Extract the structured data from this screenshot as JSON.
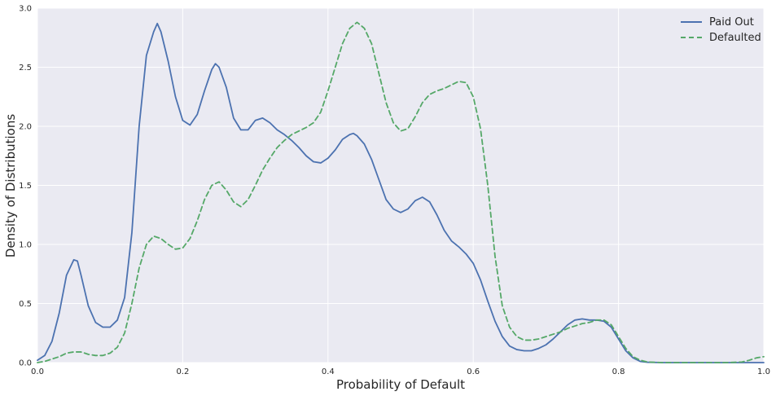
{
  "chart_data": {
    "type": "line",
    "title": "",
    "xlabel": "Probability of Default",
    "ylabel": "Density of Distributions",
    "xlim": [
      0,
      1
    ],
    "ylim": [
      0,
      3
    ],
    "xticks": [
      "0.0",
      "0.2",
      "0.4",
      "0.6",
      "0.8",
      "1.0"
    ],
    "yticks": [
      "0.0",
      "0.5",
      "1.0",
      "1.5",
      "2.0",
      "2.5",
      "3.0"
    ],
    "grid": true,
    "legend_position": "top-right",
    "series": [
      {
        "name": "Paid Out",
        "color": "#4c72b0",
        "style": "solid",
        "points": [
          [
            0.0,
            0.02
          ],
          [
            0.01,
            0.06
          ],
          [
            0.02,
            0.18
          ],
          [
            0.03,
            0.42
          ],
          [
            0.04,
            0.74
          ],
          [
            0.05,
            0.87
          ],
          [
            0.055,
            0.86
          ],
          [
            0.06,
            0.74
          ],
          [
            0.07,
            0.48
          ],
          [
            0.08,
            0.34
          ],
          [
            0.09,
            0.3
          ],
          [
            0.1,
            0.3
          ],
          [
            0.11,
            0.36
          ],
          [
            0.12,
            0.55
          ],
          [
            0.13,
            1.1
          ],
          [
            0.14,
            2.0
          ],
          [
            0.15,
            2.6
          ],
          [
            0.16,
            2.8
          ],
          [
            0.165,
            2.87
          ],
          [
            0.17,
            2.8
          ],
          [
            0.18,
            2.55
          ],
          [
            0.19,
            2.25
          ],
          [
            0.2,
            2.05
          ],
          [
            0.21,
            2.01
          ],
          [
            0.22,
            2.1
          ],
          [
            0.23,
            2.3
          ],
          [
            0.24,
            2.48
          ],
          [
            0.245,
            2.53
          ],
          [
            0.25,
            2.5
          ],
          [
            0.26,
            2.33
          ],
          [
            0.27,
            2.07
          ],
          [
            0.28,
            1.97
          ],
          [
            0.29,
            1.97
          ],
          [
            0.3,
            2.05
          ],
          [
            0.31,
            2.07
          ],
          [
            0.32,
            2.03
          ],
          [
            0.33,
            1.97
          ],
          [
            0.34,
            1.93
          ],
          [
            0.35,
            1.88
          ],
          [
            0.36,
            1.82
          ],
          [
            0.37,
            1.75
          ],
          [
            0.38,
            1.7
          ],
          [
            0.39,
            1.69
          ],
          [
            0.4,
            1.73
          ],
          [
            0.41,
            1.8
          ],
          [
            0.42,
            1.89
          ],
          [
            0.43,
            1.93
          ],
          [
            0.435,
            1.94
          ],
          [
            0.44,
            1.92
          ],
          [
            0.45,
            1.85
          ],
          [
            0.46,
            1.72
          ],
          [
            0.47,
            1.55
          ],
          [
            0.48,
            1.38
          ],
          [
            0.49,
            1.3
          ],
          [
            0.5,
            1.27
          ],
          [
            0.51,
            1.3
          ],
          [
            0.52,
            1.37
          ],
          [
            0.53,
            1.4
          ],
          [
            0.54,
            1.36
          ],
          [
            0.55,
            1.25
          ],
          [
            0.56,
            1.12
          ],
          [
            0.57,
            1.03
          ],
          [
            0.58,
            0.98
          ],
          [
            0.59,
            0.92
          ],
          [
            0.6,
            0.84
          ],
          [
            0.61,
            0.7
          ],
          [
            0.62,
            0.52
          ],
          [
            0.63,
            0.35
          ],
          [
            0.64,
            0.22
          ],
          [
            0.65,
            0.14
          ],
          [
            0.66,
            0.11
          ],
          [
            0.67,
            0.1
          ],
          [
            0.68,
            0.1
          ],
          [
            0.69,
            0.12
          ],
          [
            0.7,
            0.15
          ],
          [
            0.71,
            0.2
          ],
          [
            0.72,
            0.26
          ],
          [
            0.73,
            0.32
          ],
          [
            0.74,
            0.36
          ],
          [
            0.75,
            0.37
          ],
          [
            0.76,
            0.36
          ],
          [
            0.77,
            0.36
          ],
          [
            0.78,
            0.35
          ],
          [
            0.79,
            0.3
          ],
          [
            0.8,
            0.2
          ],
          [
            0.81,
            0.1
          ],
          [
            0.82,
            0.04
          ],
          [
            0.83,
            0.01
          ],
          [
            0.84,
            0.003
          ],
          [
            0.86,
            0.0
          ],
          [
            0.9,
            0.0
          ],
          [
            0.95,
            0.0
          ],
          [
            1.0,
            0.0
          ]
        ]
      },
      {
        "name": "Defaulted",
        "color": "#55a868",
        "style": "dashed",
        "points": [
          [
            0.0,
            0.0
          ],
          [
            0.01,
            0.01
          ],
          [
            0.02,
            0.03
          ],
          [
            0.03,
            0.05
          ],
          [
            0.04,
            0.08
          ],
          [
            0.05,
            0.09
          ],
          [
            0.06,
            0.09
          ],
          [
            0.07,
            0.07
          ],
          [
            0.08,
            0.06
          ],
          [
            0.09,
            0.06
          ],
          [
            0.1,
            0.08
          ],
          [
            0.11,
            0.13
          ],
          [
            0.12,
            0.25
          ],
          [
            0.13,
            0.5
          ],
          [
            0.14,
            0.8
          ],
          [
            0.15,
            1.0
          ],
          [
            0.16,
            1.07
          ],
          [
            0.17,
            1.05
          ],
          [
            0.18,
            1.0
          ],
          [
            0.19,
            0.96
          ],
          [
            0.2,
            0.97
          ],
          [
            0.21,
            1.05
          ],
          [
            0.22,
            1.2
          ],
          [
            0.23,
            1.38
          ],
          [
            0.24,
            1.5
          ],
          [
            0.25,
            1.53
          ],
          [
            0.26,
            1.46
          ],
          [
            0.27,
            1.36
          ],
          [
            0.28,
            1.32
          ],
          [
            0.29,
            1.38
          ],
          [
            0.3,
            1.5
          ],
          [
            0.31,
            1.63
          ],
          [
            0.32,
            1.73
          ],
          [
            0.33,
            1.82
          ],
          [
            0.34,
            1.88
          ],
          [
            0.35,
            1.93
          ],
          [
            0.36,
            1.96
          ],
          [
            0.37,
            1.99
          ],
          [
            0.38,
            2.03
          ],
          [
            0.39,
            2.12
          ],
          [
            0.4,
            2.3
          ],
          [
            0.41,
            2.5
          ],
          [
            0.42,
            2.7
          ],
          [
            0.43,
            2.83
          ],
          [
            0.44,
            2.88
          ],
          [
            0.45,
            2.83
          ],
          [
            0.46,
            2.7
          ],
          [
            0.47,
            2.45
          ],
          [
            0.48,
            2.2
          ],
          [
            0.49,
            2.03
          ],
          [
            0.5,
            1.96
          ],
          [
            0.51,
            1.98
          ],
          [
            0.52,
            2.08
          ],
          [
            0.53,
            2.2
          ],
          [
            0.54,
            2.27
          ],
          [
            0.55,
            2.3
          ],
          [
            0.56,
            2.32
          ],
          [
            0.57,
            2.35
          ],
          [
            0.58,
            2.38
          ],
          [
            0.59,
            2.37
          ],
          [
            0.6,
            2.25
          ],
          [
            0.61,
            1.98
          ],
          [
            0.62,
            1.5
          ],
          [
            0.63,
            0.9
          ],
          [
            0.64,
            0.48
          ],
          [
            0.65,
            0.3
          ],
          [
            0.66,
            0.22
          ],
          [
            0.67,
            0.19
          ],
          [
            0.68,
            0.19
          ],
          [
            0.69,
            0.2
          ],
          [
            0.7,
            0.22
          ],
          [
            0.71,
            0.24
          ],
          [
            0.72,
            0.26
          ],
          [
            0.73,
            0.29
          ],
          [
            0.74,
            0.31
          ],
          [
            0.75,
            0.33
          ],
          [
            0.76,
            0.34
          ],
          [
            0.77,
            0.36
          ],
          [
            0.78,
            0.36
          ],
          [
            0.79,
            0.32
          ],
          [
            0.8,
            0.22
          ],
          [
            0.81,
            0.12
          ],
          [
            0.82,
            0.05
          ],
          [
            0.83,
            0.02
          ],
          [
            0.84,
            0.005
          ],
          [
            0.86,
            0.0
          ],
          [
            0.9,
            0.0
          ],
          [
            0.95,
            0.0
          ],
          [
            0.97,
            0.005
          ],
          [
            0.98,
            0.02
          ],
          [
            0.99,
            0.04
          ],
          [
            1.0,
            0.05
          ]
        ]
      }
    ]
  }
}
